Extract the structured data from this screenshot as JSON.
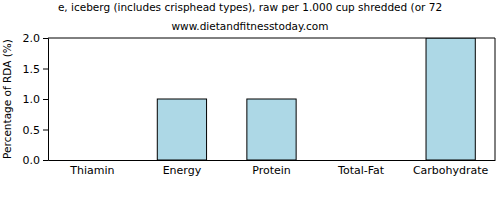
{
  "chart_data": {
    "type": "bar",
    "title": "e, iceberg (includes crisphead types), raw per 1.000 cup shredded (or 72",
    "subtitle": "www.dietandfitnesstoday.com",
    "y_label": "Percentage of RDA (%)",
    "categories": [
      "Thiamin",
      "Energy",
      "Protein",
      "Total-Fat",
      "Carbohydrate"
    ],
    "values": [
      0,
      1,
      1,
      0,
      2
    ],
    "color": "#add8e6",
    "ylim": [
      0,
      2
    ],
    "yticks": [
      {
        "value": 0,
        "label": "0.0"
      },
      {
        "value": 0.5,
        "label": "0.5"
      },
      {
        "value": 1,
        "label": "1.0"
      },
      {
        "value": 1.5,
        "label": "1.5"
      },
      {
        "value": 2,
        "label": "2.0"
      }
    ],
    "grid": false
  }
}
